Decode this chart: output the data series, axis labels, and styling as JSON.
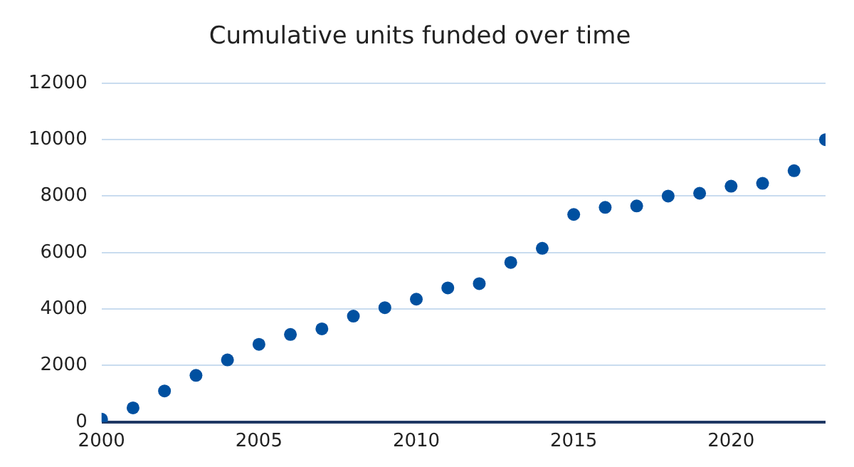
{
  "chart_data": {
    "type": "scatter",
    "title": "Cumulative units funded over time",
    "x": [
      2000,
      2001,
      2002,
      2003,
      2004,
      2005,
      2006,
      2007,
      2008,
      2009,
      2010,
      2011,
      2012,
      2013,
      2014,
      2015,
      2016,
      2017,
      2018,
      2019,
      2020,
      2021,
      2022,
      2023
    ],
    "series": [
      {
        "color": "#0050a0",
        "values": [
          100,
          500,
          1100,
          1650,
          2200,
          2750,
          3100,
          3300,
          3750,
          4050,
          4350,
          4750,
          4900,
          5650,
          6150,
          7350,
          7600,
          7650,
          8000,
          8100,
          8350,
          8450,
          8900,
          10000
        ]
      }
    ],
    "xlim": [
      2000,
      2023
    ],
    "xticks": [
      2000,
      2005,
      2010,
      2015,
      2020
    ],
    "ylim": [
      0,
      12000
    ],
    "yticks": [
      0,
      2000,
      4000,
      6000,
      8000,
      10000,
      12000
    ],
    "grid": "y",
    "legend": false,
    "marker": "circle"
  }
}
